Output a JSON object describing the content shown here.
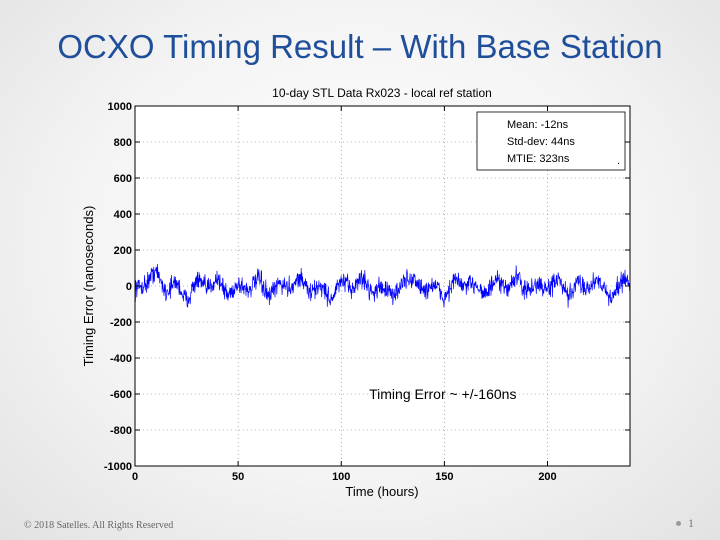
{
  "slide": {
    "title": "OCXO Timing Result – With Base Station",
    "footer": "© 2018 Satelles. All Rights Reserved",
    "page_number": "1"
  },
  "chart_data": {
    "type": "line",
    "title": "10-day STL Data Rx023 - local ref station",
    "xlabel": "Time (hours)",
    "ylabel": "Timing Error (nanoseconds)",
    "xlim": [
      0,
      240
    ],
    "ylim": [
      -1000,
      1000
    ],
    "xticks": [
      0,
      50,
      100,
      150,
      200
    ],
    "yticks": [
      -1000,
      -800,
      -600,
      -400,
      -200,
      0,
      200,
      400,
      600,
      800,
      1000
    ],
    "grid": true,
    "line_color": "#0000ff",
    "series": [
      {
        "x": [
          0,
          5,
          10,
          15,
          20,
          25,
          30,
          35,
          40,
          45,
          50,
          55,
          60,
          65,
          70,
          75,
          80,
          85,
          90,
          95,
          100,
          105,
          110,
          115,
          120,
          125,
          130,
          135,
          140,
          145,
          150,
          155,
          160,
          165,
          170,
          175,
          180,
          185,
          190,
          195,
          200,
          205,
          210,
          215,
          220,
          225,
          230,
          235,
          240
        ],
        "values": [
          -20,
          10,
          150,
          -60,
          40,
          -140,
          60,
          -30,
          80,
          -90,
          20,
          -40,
          70,
          -110,
          30,
          -20,
          90,
          -70,
          10,
          -130,
          50,
          -30,
          80,
          -60,
          0,
          -100,
          40,
          70,
          -50,
          20,
          -120,
          60,
          -10,
          30,
          -80,
          50,
          -30,
          90,
          -60,
          20,
          -40,
          70,
          -110,
          40,
          -20,
          80,
          -130,
          30,
          60
        ]
      }
    ],
    "legend_box": {
      "position": "top-right",
      "lines": [
        "Mean:  -12ns",
        "Std-dev: 44ns",
        "MTIE:  323ns"
      ],
      "trailing_mark": "."
    },
    "annotations": [
      {
        "text": "Timing Error ~ +/-160ns",
        "x": 130,
        "y": -600
      }
    ]
  }
}
